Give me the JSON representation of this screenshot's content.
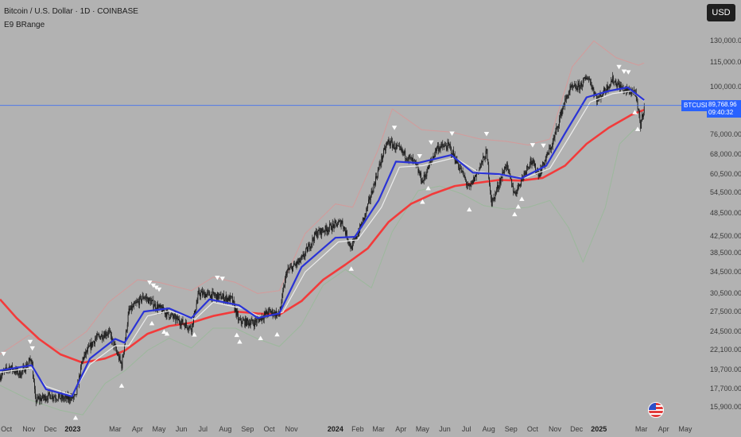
{
  "header": {
    "title": "Bitcoin / U.S. Dollar · 1D · COINBASE",
    "indicator": "E9 BRange"
  },
  "currency_button": "USD",
  "last_price": {
    "symbol": "BTCUSD",
    "price": "89,768.96",
    "countdown": "09:40:32",
    "color": "#2962ff"
  },
  "colors": {
    "background": "#b2b2b2",
    "candle": "#1c1c1c",
    "fast_ma": "#2a33d6",
    "signal_ma": "#ececec",
    "slow_ma": "#f23b3b",
    "upper_band": "#d49a9a",
    "lower_band": "#9cb89c",
    "marker": "#ffffff",
    "sell_marker_alt": "#e05858"
  },
  "icons": [
    "us-flag-icon"
  ],
  "chart_data": {
    "type": "candlestick",
    "title": "Bitcoin / U.S. Dollar · 1D · COINBASE",
    "y_scale": "log",
    "ylim": [
      15000,
      150000
    ],
    "y_ticks": [
      130000,
      115000,
      100000,
      88000,
      76000,
      68000,
      60500,
      54500,
      48500,
      42500,
      38500,
      34500,
      30500,
      27500,
      24500,
      22100,
      19700,
      17700,
      15900
    ],
    "y_tick_labels": [
      "130,000.00",
      "115,000.00",
      "100,000.00",
      "88,000.00",
      "76,000.00",
      "68,000.00",
      "60,500.00",
      "54,500.00",
      "48,500.00",
      "42,500.00",
      "38,500.00",
      "34,500.00",
      "30,500.00",
      "27,500.00",
      "24,500.00",
      "22,100.00",
      "19,700.00",
      "17,700.00",
      "15,900.00"
    ],
    "x_range": [
      "2022-09-22",
      "2025-05-31"
    ],
    "x_ticks": [
      {
        "label": "Oct",
        "date": "2022-10-01"
      },
      {
        "label": "Nov",
        "date": "2022-11-01"
      },
      {
        "label": "Dec",
        "date": "2022-12-01"
      },
      {
        "label": "2023",
        "date": "2023-01-01",
        "bold": true
      },
      {
        "label": "Mar",
        "date": "2023-03-01"
      },
      {
        "label": "Apr",
        "date": "2023-04-01"
      },
      {
        "label": "May",
        "date": "2023-05-01"
      },
      {
        "label": "Jun",
        "date": "2023-06-01"
      },
      {
        "label": "Jul",
        "date": "2023-07-01"
      },
      {
        "label": "Aug",
        "date": "2023-08-01"
      },
      {
        "label": "Sep",
        "date": "2023-09-01"
      },
      {
        "label": "Oct",
        "date": "2023-10-01"
      },
      {
        "label": "Nov",
        "date": "2023-11-01"
      },
      {
        "label": "2024",
        "date": "2024-01-01",
        "bold": true
      },
      {
        "label": "Feb",
        "date": "2024-02-01"
      },
      {
        "label": "Mar",
        "date": "2024-03-01"
      },
      {
        "label": "Apr",
        "date": "2024-04-01"
      },
      {
        "label": "May",
        "date": "2024-05-01"
      },
      {
        "label": "Jun",
        "date": "2024-06-01"
      },
      {
        "label": "Jul",
        "date": "2024-07-01"
      },
      {
        "label": "Aug",
        "date": "2024-08-01"
      },
      {
        "label": "Sep",
        "date": "2024-09-01"
      },
      {
        "label": "Oct",
        "date": "2024-10-01"
      },
      {
        "label": "Nov",
        "date": "2024-11-01"
      },
      {
        "label": "Dec",
        "date": "2024-12-01"
      },
      {
        "label": "2025",
        "date": "2025-01-01",
        "bold": true
      },
      {
        "label": "Mar",
        "date": "2025-03-01"
      },
      {
        "label": "Apr",
        "date": "2025-04-01"
      },
      {
        "label": "May",
        "date": "2025-05-01"
      }
    ],
    "price_path": [
      [
        "2022-09-22",
        19000
      ],
      [
        "2022-10-05",
        20000
      ],
      [
        "2022-10-20",
        19200
      ],
      [
        "2022-11-05",
        21000
      ],
      [
        "2022-11-10",
        16500
      ],
      [
        "2022-12-01",
        17000
      ],
      [
        "2022-12-20",
        16700
      ],
      [
        "2023-01-05",
        16800
      ],
      [
        "2023-01-15",
        21000
      ],
      [
        "2023-02-01",
        23500
      ],
      [
        "2023-02-20",
        24500
      ],
      [
        "2023-03-10",
        20200
      ],
      [
        "2023-03-20",
        27500
      ],
      [
        "2023-04-10",
        30000
      ],
      [
        "2023-04-25",
        28500
      ],
      [
        "2023-05-15",
        27000
      ],
      [
        "2023-06-15",
        25000
      ],
      [
        "2023-06-25",
        30500
      ],
      [
        "2023-07-10",
        30300
      ],
      [
        "2023-08-10",
        29500
      ],
      [
        "2023-08-20",
        26000
      ],
      [
        "2023-09-10",
        25800
      ],
      [
        "2023-10-01",
        27500
      ],
      [
        "2023-10-15",
        27000
      ],
      [
        "2023-10-25",
        34500
      ],
      [
        "2023-11-15",
        37000
      ],
      [
        "2023-12-05",
        43000
      ],
      [
        "2024-01-10",
        46000
      ],
      [
        "2024-01-23",
        39500
      ],
      [
        "2024-02-10",
        47000
      ],
      [
        "2024-03-05",
        66000
      ],
      [
        "2024-03-14",
        73000
      ],
      [
        "2024-04-01",
        69000
      ],
      [
        "2024-04-20",
        64500
      ],
      [
        "2024-05-01",
        58000
      ],
      [
        "2024-05-21",
        70500
      ],
      [
        "2024-06-07",
        71000
      ],
      [
        "2024-06-25",
        61000
      ],
      [
        "2024-07-05",
        55500
      ],
      [
        "2024-07-29",
        68500
      ],
      [
        "2024-08-05",
        51000
      ],
      [
        "2024-08-25",
        64000
      ],
      [
        "2024-09-06",
        54000
      ],
      [
        "2024-09-28",
        65500
      ],
      [
        "2024-10-10",
        60500
      ],
      [
        "2024-10-29",
        72500
      ],
      [
        "2024-11-12",
        89000
      ],
      [
        "2024-11-22",
        98500
      ],
      [
        "2024-12-05",
        100000
      ],
      [
        "2024-12-17",
        106000
      ],
      [
        "2024-12-30",
        92500
      ],
      [
        "2025-01-20",
        104000
      ],
      [
        "2025-02-05",
        98000
      ],
      [
        "2025-02-20",
        97000
      ],
      [
        "2025-02-28",
        80000
      ],
      [
        "2025-03-05",
        89768.96
      ]
    ],
    "ma_fast": [
      [
        "2022-09-22",
        19600
      ],
      [
        "2022-11-05",
        20200
      ],
      [
        "2022-11-25",
        17600
      ],
      [
        "2022-12-31",
        16900
      ],
      [
        "2023-01-25",
        21000
      ],
      [
        "2023-03-01",
        23500
      ],
      [
        "2023-03-14",
        23000
      ],
      [
        "2023-04-10",
        27500
      ],
      [
        "2023-05-15",
        28000
      ],
      [
        "2023-06-15",
        26500
      ],
      [
        "2023-07-10",
        29500
      ],
      [
        "2023-08-20",
        28500
      ],
      [
        "2023-09-15",
        26500
      ],
      [
        "2023-10-15",
        27200
      ],
      [
        "2023-11-15",
        35500
      ],
      [
        "2024-01-01",
        42000
      ],
      [
        "2024-01-28",
        42200
      ],
      [
        "2024-03-01",
        52000
      ],
      [
        "2024-03-25",
        65000
      ],
      [
        "2024-04-25",
        64500
      ],
      [
        "2024-06-10",
        67500
      ],
      [
        "2024-07-10",
        61000
      ],
      [
        "2024-08-15",
        60500
      ],
      [
        "2024-09-15",
        59000
      ],
      [
        "2024-10-20",
        63500
      ],
      [
        "2024-11-15",
        76500
      ],
      [
        "2024-12-15",
        94000
      ],
      [
        "2025-01-15",
        97500
      ],
      [
        "2025-02-10",
        99500
      ],
      [
        "2025-03-05",
        92500
      ]
    ],
    "ma_signal": [
      [
        "2022-09-22",
        19400
      ],
      [
        "2022-11-05",
        19900
      ],
      [
        "2022-11-25",
        17900
      ],
      [
        "2022-12-31",
        17000
      ],
      [
        "2023-01-25",
        20300
      ],
      [
        "2023-03-01",
        22600
      ],
      [
        "2023-03-20",
        22600
      ],
      [
        "2023-04-15",
        26800
      ],
      [
        "2023-05-15",
        27600
      ],
      [
        "2023-06-20",
        26300
      ],
      [
        "2023-07-15",
        29000
      ],
      [
        "2023-08-25",
        28000
      ],
      [
        "2023-09-20",
        26600
      ],
      [
        "2023-10-20",
        27400
      ],
      [
        "2023-11-20",
        34500
      ],
      [
        "2024-01-05",
        41000
      ],
      [
        "2024-02-01",
        41500
      ],
      [
        "2024-03-05",
        50000
      ],
      [
        "2024-03-30",
        63000
      ],
      [
        "2024-05-01",
        63500
      ],
      [
        "2024-06-15",
        66500
      ],
      [
        "2024-07-15",
        61500
      ],
      [
        "2024-08-20",
        60000
      ],
      [
        "2024-09-20",
        59200
      ],
      [
        "2024-10-25",
        62500
      ],
      [
        "2024-11-20",
        74500
      ],
      [
        "2024-12-20",
        91500
      ],
      [
        "2025-01-20",
        96000
      ],
      [
        "2025-02-15",
        97500
      ],
      [
        "2025-03-05",
        92000
      ]
    ],
    "ma_slow": [
      [
        "2022-09-22",
        29500
      ],
      [
        "2022-10-15",
        26500
      ],
      [
        "2022-11-15",
        23500
      ],
      [
        "2022-12-15",
        21500
      ],
      [
        "2023-01-15",
        20500
      ],
      [
        "2023-02-15",
        21000
      ],
      [
        "2023-03-15",
        22000
      ],
      [
        "2023-04-15",
        24200
      ],
      [
        "2023-05-15",
        25300
      ],
      [
        "2023-06-15",
        25800
      ],
      [
        "2023-07-15",
        26800
      ],
      [
        "2023-08-15",
        27500
      ],
      [
        "2023-09-15",
        27200
      ],
      [
        "2023-10-15",
        27000
      ],
      [
        "2023-11-15",
        29200
      ],
      [
        "2023-12-15",
        33000
      ],
      [
        "2024-01-15",
        36000
      ],
      [
        "2024-02-15",
        39500
      ],
      [
        "2024-03-15",
        46000
      ],
      [
        "2024-04-15",
        51000
      ],
      [
        "2024-05-15",
        54000
      ],
      [
        "2024-06-15",
        56500
      ],
      [
        "2024-07-15",
        57500
      ],
      [
        "2024-08-15",
        58500
      ],
      [
        "2024-09-15",
        58300
      ],
      [
        "2024-10-15",
        59200
      ],
      [
        "2024-11-15",
        63500
      ],
      [
        "2024-12-15",
        72000
      ],
      [
        "2025-01-15",
        79000
      ],
      [
        "2025-02-15",
        85000
      ],
      [
        "2025-03-05",
        87500
      ]
    ],
    "upper_band": [
      [
        "2022-09-22",
        21500
      ],
      [
        "2022-11-01",
        24000
      ],
      [
        "2022-12-15",
        22000
      ],
      [
        "2023-01-20",
        24500
      ],
      [
        "2023-02-20",
        29000
      ],
      [
        "2023-04-01",
        33000
      ],
      [
        "2023-05-01",
        32500
      ],
      [
        "2023-06-15",
        31000
      ],
      [
        "2023-07-15",
        33500
      ],
      [
        "2023-08-15",
        32500
      ],
      [
        "2023-09-15",
        30500
      ],
      [
        "2023-10-15",
        31000
      ],
      [
        "2023-11-20",
        43000
      ],
      [
        "2024-01-01",
        51000
      ],
      [
        "2024-01-25",
        50000
      ],
      [
        "2024-03-01",
        70000
      ],
      [
        "2024-03-20",
        88000
      ],
      [
        "2024-04-30",
        78000
      ],
      [
        "2024-06-10",
        77000
      ],
      [
        "2024-07-20",
        74000
      ],
      [
        "2024-08-25",
        73000
      ],
      [
        "2024-09-25",
        71500
      ],
      [
        "2024-10-25",
        74000
      ],
      [
        "2024-11-25",
        112000
      ],
      [
        "2024-12-25",
        130000
      ],
      [
        "2025-01-25",
        118000
      ],
      [
        "2025-02-25",
        113000
      ],
      [
        "2025-03-05",
        114500
      ]
    ],
    "lower_band": [
      [
        "2022-09-22",
        18000
      ],
      [
        "2022-11-01",
        16600
      ],
      [
        "2022-12-15",
        15600
      ],
      [
        "2023-01-15",
        15200
      ],
      [
        "2023-02-15",
        18200
      ],
      [
        "2023-03-15",
        19600
      ],
      [
        "2023-04-15",
        22000
      ],
      [
        "2023-05-15",
        23600
      ],
      [
        "2023-06-15",
        22300
      ],
      [
        "2023-07-15",
        25000
      ],
      [
        "2023-08-15",
        25000
      ],
      [
        "2023-09-15",
        23500
      ],
      [
        "2023-10-15",
        22500
      ],
      [
        "2023-11-15",
        25500
      ],
      [
        "2023-12-15",
        32000
      ],
      [
        "2024-01-15",
        35000
      ],
      [
        "2024-02-20",
        31500
      ],
      [
        "2024-03-20",
        43500
      ],
      [
        "2024-04-25",
        55000
      ],
      [
        "2024-05-25",
        56500
      ],
      [
        "2024-06-25",
        54000
      ],
      [
        "2024-07-25",
        50500
      ],
      [
        "2024-08-25",
        49500
      ],
      [
        "2024-09-25",
        50000
      ],
      [
        "2024-10-25",
        52000
      ],
      [
        "2024-11-20",
        44500
      ],
      [
        "2024-12-10",
        36500
      ],
      [
        "2025-01-10",
        50000
      ],
      [
        "2025-01-30",
        72000
      ],
      [
        "2025-02-20",
        78500
      ]
    ],
    "sell_signals": [
      "2022-09-27",
      "2022-11-03",
      "2022-11-06",
      "2023-04-18",
      "2023-04-23",
      "2023-04-27",
      "2023-05-01",
      "2023-07-21",
      "2023-07-28",
      "2024-03-23",
      "2024-04-27",
      "2024-05-13",
      "2024-06-11",
      "2024-07-29",
      "2024-10-01",
      "2024-10-16",
      "2025-01-29",
      "2025-02-05",
      "2025-02-11"
    ],
    "buy_signals": [
      "2023-01-05",
      "2023-03-10",
      "2023-04-21",
      "2023-05-08",
      "2023-05-12",
      "2023-06-19",
      "2023-08-17",
      "2023-08-21",
      "2023-09-19",
      "2023-10-12",
      "2024-01-23",
      "2024-05-01",
      "2024-05-09",
      "2024-07-05",
      "2024-09-06",
      "2024-09-11",
      "2024-09-16",
      "2025-02-20",
      "2025-02-24"
    ]
  }
}
